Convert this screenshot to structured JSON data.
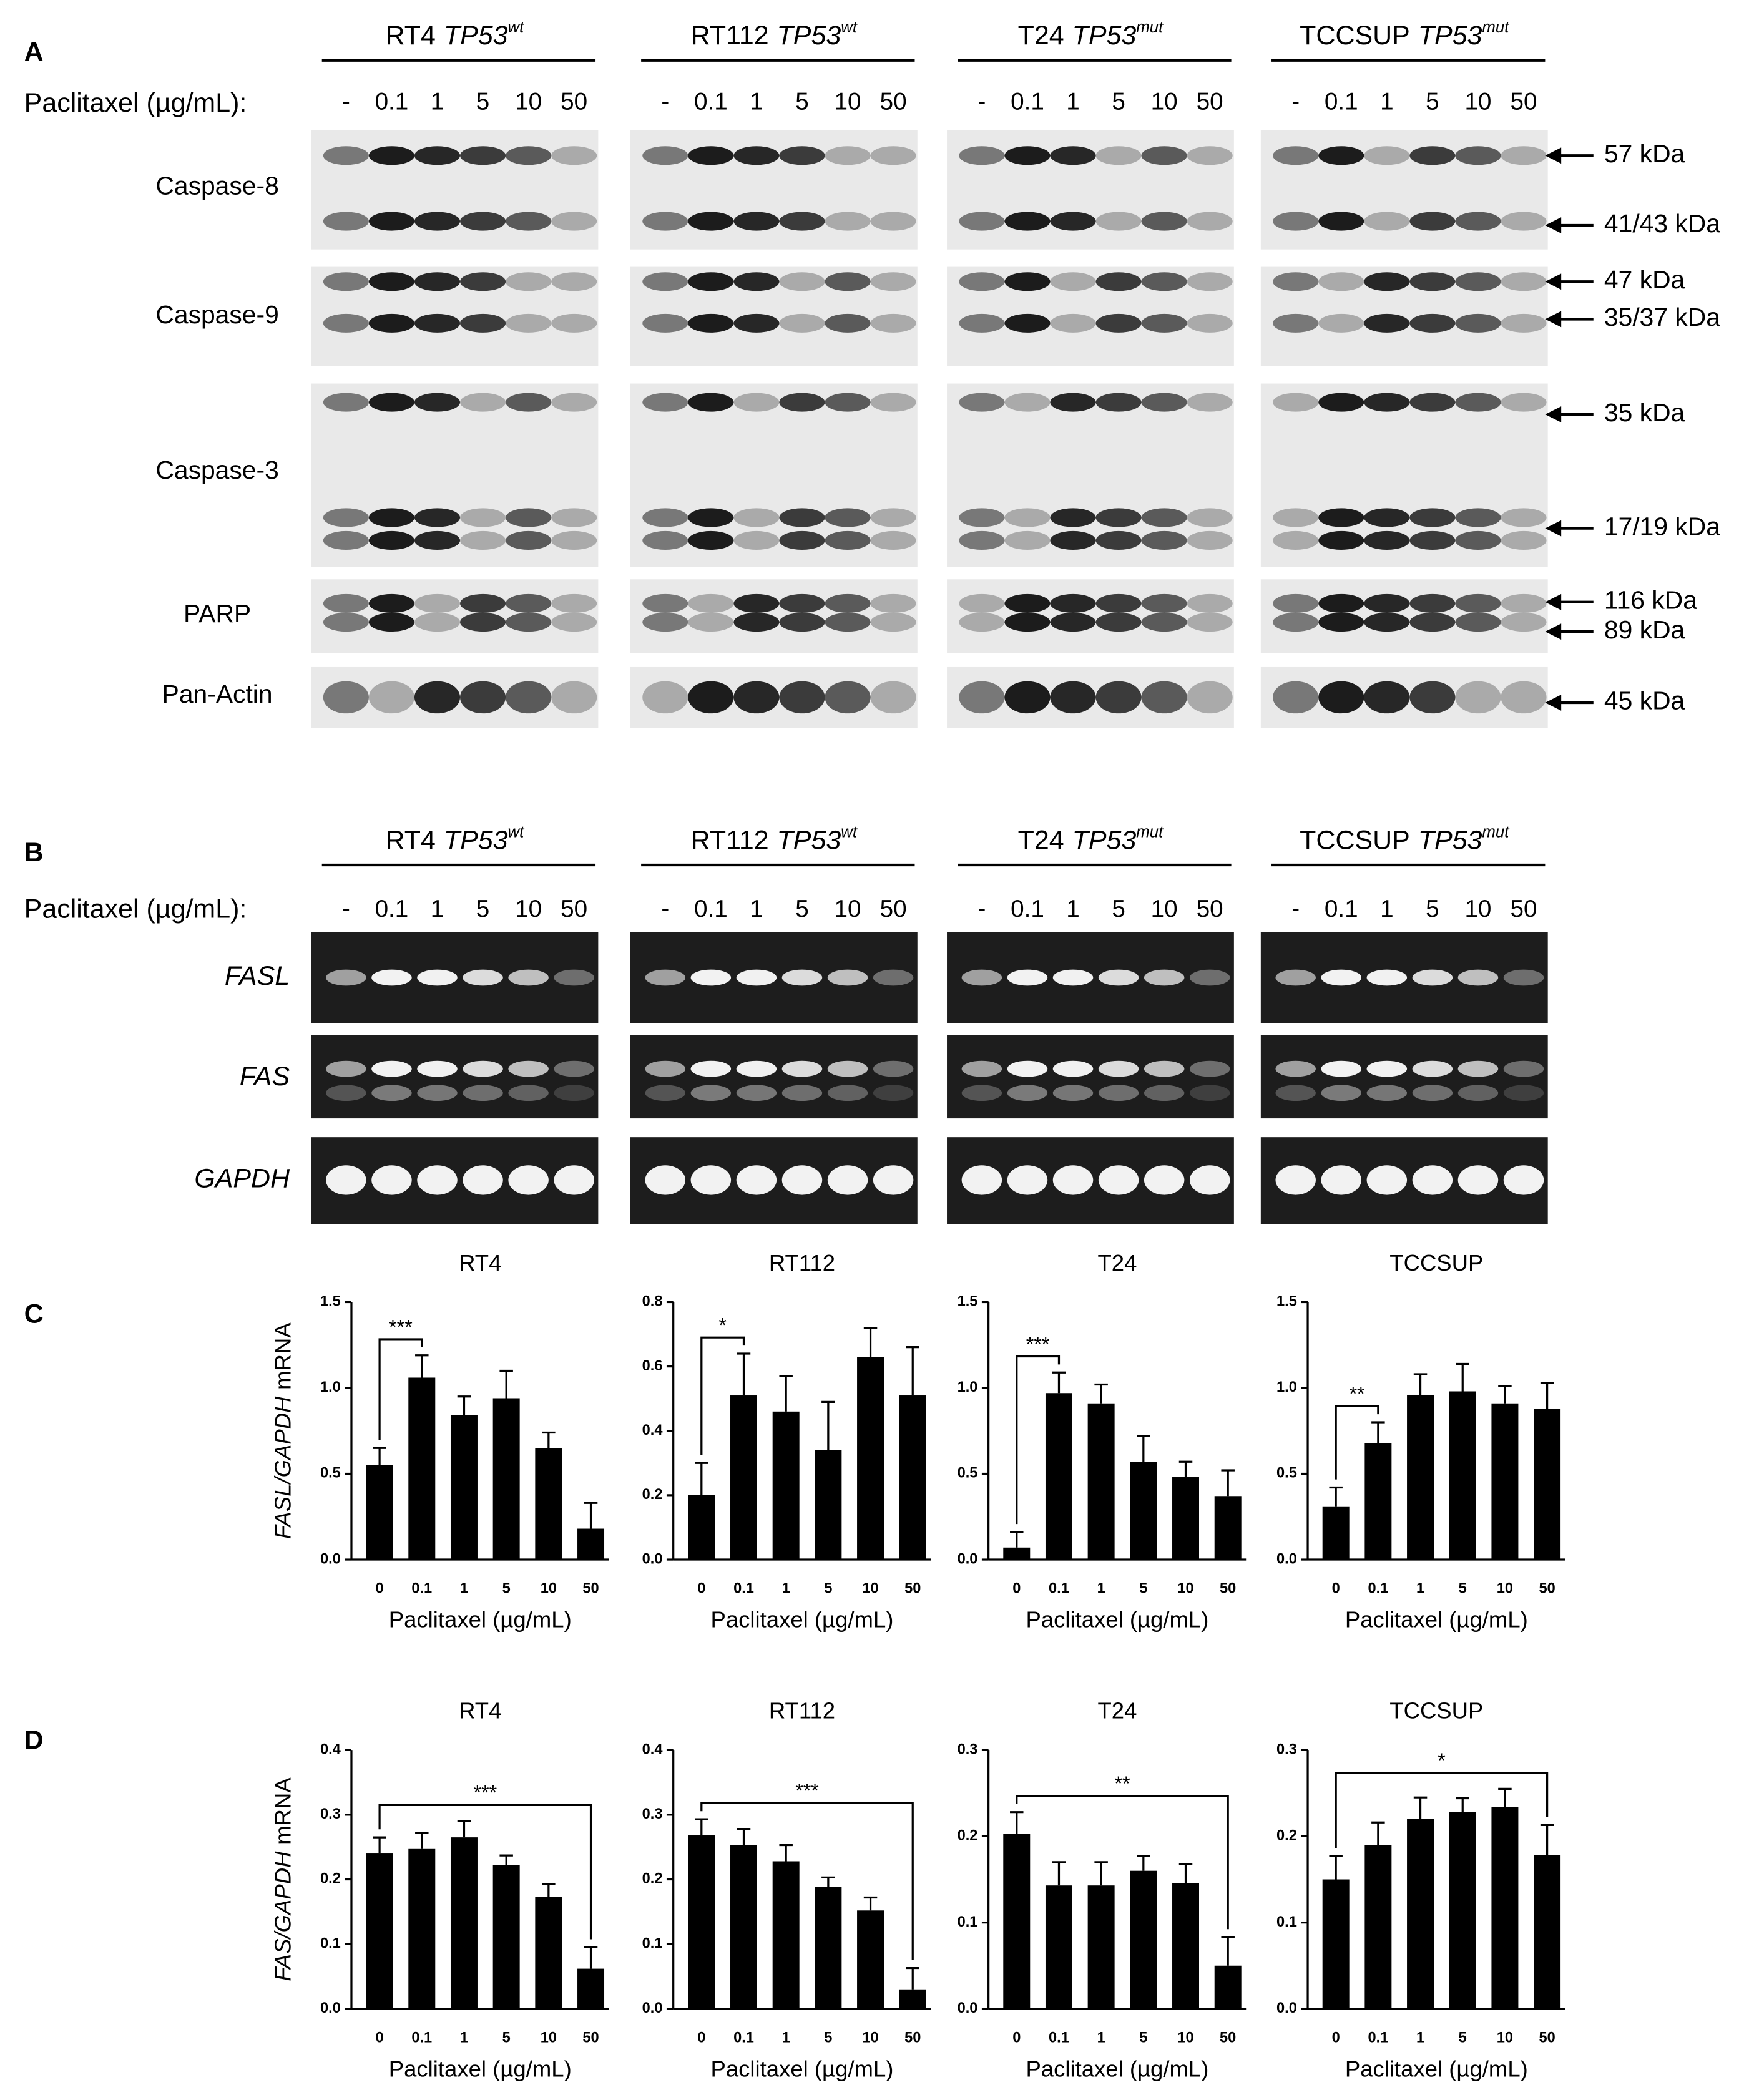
{
  "panel_a": {
    "letter": "A",
    "headers": [
      {
        "name": "RT4",
        "gene": "TP53",
        "status": "wt"
      },
      {
        "name": "RT112",
        "gene": "TP53",
        "status": "wt"
      },
      {
        "name": "T24",
        "gene": "TP53",
        "status": "mut"
      },
      {
        "name": "TCCSUP",
        "gene": "TP53",
        "status": "mut"
      }
    ],
    "treatment": "Paclitaxel (µg/mL):",
    "lanes": [
      "-",
      "0.1",
      "1",
      "5",
      "10",
      "50"
    ],
    "rows": [
      "Caspase-8",
      "Caspase-9",
      "Caspase-3",
      "PARP",
      "Pan-Actin"
    ],
    "markers": [
      "57 kDa",
      "41/43 kDa",
      "47 kDa",
      "35/37 kDa",
      "35 kDa",
      "17/19 kDa",
      "116 kDa",
      "89 kDa",
      "45 kDa"
    ]
  },
  "panel_b": {
    "letter": "B",
    "headers": [
      {
        "name": "RT4",
        "gene": "TP53",
        "status": "wt"
      },
      {
        "name": "RT112",
        "gene": "TP53",
        "status": "wt"
      },
      {
        "name": "T24",
        "gene": "TP53",
        "status": "mut"
      },
      {
        "name": "TCCSUP",
        "gene": "TP53",
        "status": "mut"
      }
    ],
    "treatment": "Paclitaxel (µg/mL):",
    "lanes": [
      "-",
      "0.1",
      "1",
      "5",
      "10",
      "50"
    ],
    "rows": [
      "FASL",
      "FAS",
      "GAPDH"
    ]
  },
  "panel_c": {
    "letter": "C"
  },
  "panel_d": {
    "letter": "D"
  },
  "chart_data": [
    {
      "type": "bar",
      "title": "RT4",
      "ylabel_italic": "FASL/GAPDH",
      "ylabel_rest": "mRNA",
      "xlabel": "Paclitaxel (µg/mL)",
      "categories": [
        "0",
        "0.1",
        "1",
        "5",
        "10",
        "50"
      ],
      "values": [
        0.55,
        1.06,
        0.84,
        0.94,
        0.65,
        0.18
      ],
      "errors": [
        0.1,
        0.13,
        0.11,
        0.16,
        0.09,
        0.15
      ],
      "ylim": [
        0,
        1.5
      ],
      "yticks": [
        {
          "value": 0,
          "label": "0.0"
        },
        0.5,
        {
          "value": 1,
          "label": "1.0"
        },
        1.5
      ],
      "color": "#000000",
      "significance": "***"
    },
    {
      "type": "bar",
      "title": "RT112",
      "xlabel": "Paclitaxel (µg/mL)",
      "categories": [
        "0",
        "0.1",
        "1",
        "5",
        "10",
        "50"
      ],
      "values": [
        0.2,
        0.51,
        0.46,
        0.34,
        0.63,
        0.51
      ],
      "errors": [
        0.1,
        0.13,
        0.11,
        0.15,
        0.09,
        0.15
      ],
      "ylim": [
        0,
        0.8
      ],
      "yticks": [
        {
          "value": 0,
          "label": "0.0"
        },
        0.2,
        0.4,
        0.6,
        0.8
      ],
      "color": "#000000",
      "significance": "*"
    },
    {
      "type": "bar",
      "title": "T24",
      "xlabel": "Paclitaxel (µg/mL)",
      "categories": [
        "0",
        "0.1",
        "1",
        "5",
        "10",
        "50"
      ],
      "values": [
        0.07,
        0.97,
        0.91,
        0.57,
        0.48,
        0.37
      ],
      "errors": [
        0.09,
        0.12,
        0.11,
        0.15,
        0.09,
        0.15
      ],
      "ylim": [
        0,
        1.5
      ],
      "yticks": [
        {
          "value": 0,
          "label": "0.0"
        },
        0.5,
        {
          "value": 1,
          "label": "1.0"
        },
        1.5
      ],
      "color": "#000000",
      "significance": "***"
    },
    {
      "type": "bar",
      "title": "TCCSUP",
      "xlabel": "Paclitaxel (µg/mL)",
      "categories": [
        "0",
        "0.1",
        "1",
        "5",
        "10",
        "50"
      ],
      "values": [
        0.31,
        0.68,
        0.96,
        0.98,
        0.91,
        0.88
      ],
      "errors": [
        0.11,
        0.12,
        0.12,
        0.16,
        0.1,
        0.15
      ],
      "ylim": [
        0,
        1.5
      ],
      "yticks": [
        {
          "value": 0,
          "label": "0.0"
        },
        0.5,
        {
          "value": 1,
          "label": "1.0"
        },
        1.5
      ],
      "color": "#000000",
      "significance": "**"
    },
    {
      "type": "bar",
      "title": "RT4",
      "ylabel_italic": "FAS/GAPDH",
      "ylabel_rest": "mRNA",
      "xlabel": "Paclitaxel (µg/mL)",
      "categories": [
        "0",
        "0.1",
        "1",
        "5",
        "10",
        "50"
      ],
      "values": [
        0.24,
        0.247,
        0.265,
        0.222,
        0.173,
        0.062
      ],
      "errors": [
        0.025,
        0.025,
        0.025,
        0.015,
        0.02,
        0.033
      ],
      "ylim": [
        0,
        0.4
      ],
      "yticks": [
        {
          "value": 0,
          "label": "0.0"
        },
        0.1,
        0.2,
        0.3,
        0.4
      ],
      "color": "#000000",
      "significance": "***"
    },
    {
      "type": "bar",
      "title": "RT112",
      "xlabel": "Paclitaxel (µg/mL)",
      "categories": [
        "0",
        "0.1",
        "1",
        "5",
        "10",
        "50"
      ],
      "values": [
        0.268,
        0.253,
        0.228,
        0.188,
        0.152,
        0.03
      ],
      "errors": [
        0.025,
        0.025,
        0.025,
        0.015,
        0.02,
        0.033
      ],
      "ylim": [
        0,
        0.4
      ],
      "yticks": [
        {
          "value": 0,
          "label": "0.0"
        },
        0.1,
        0.2,
        0.3,
        0.4
      ],
      "color": "#000000",
      "significance": "***"
    },
    {
      "type": "bar",
      "title": "T24",
      "xlabel": "Paclitaxel (µg/mL)",
      "categories": [
        "0",
        "0.1",
        "1",
        "5",
        "10",
        "50"
      ],
      "values": [
        0.203,
        0.143,
        0.143,
        0.16,
        0.146,
        0.05
      ],
      "errors": [
        0.025,
        0.027,
        0.027,
        0.017,
        0.022,
        0.033
      ],
      "ylim": [
        0,
        0.3
      ],
      "yticks": [
        {
          "value": 0,
          "label": "0.0"
        },
        0.1,
        0.2,
        0.3
      ],
      "color": "#000000",
      "significance": "**"
    },
    {
      "type": "bar",
      "title": "TCCSUP",
      "xlabel": "Paclitaxel (µg/mL)",
      "categories": [
        "0",
        "0.1",
        "1",
        "5",
        "10",
        "50"
      ],
      "values": [
        0.15,
        0.19,
        0.22,
        0.228,
        0.234,
        0.178
      ],
      "errors": [
        0.027,
        0.026,
        0.025,
        0.016,
        0.021,
        0.035
      ],
      "ylim": [
        0,
        0.3
      ],
      "yticks": [
        {
          "value": 0,
          "label": "0.0"
        },
        0.1,
        0.2,
        0.3
      ],
      "color": "#000000",
      "significance": "*"
    }
  ]
}
